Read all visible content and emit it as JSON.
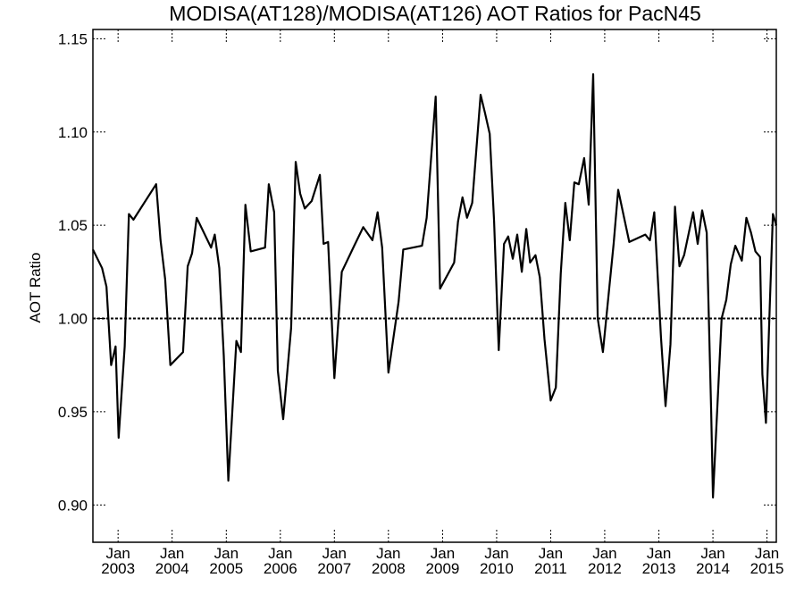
{
  "chart_data": {
    "type": "line",
    "title": "MODISA(AT128)/MODISA(AT126)  AOT Ratios for PacN45",
    "ylabel": "AOT Ratio",
    "xlabel": "",
    "ylim": [
      0.88,
      1.155
    ],
    "xlim": [
      "2002-07-15",
      "2015-03-05"
    ],
    "yticks": [
      0.9,
      0.95,
      1.0,
      1.05,
      1.1,
      1.15
    ],
    "ytick_labels": [
      "0.90",
      "0.95",
      "1.00",
      "1.05",
      "1.10",
      "1.15"
    ],
    "xticks": [
      {
        "month": "Jan",
        "year": "2003",
        "date": "2003-01-01"
      },
      {
        "month": "Jan",
        "year": "2004",
        "date": "2004-01-01"
      },
      {
        "month": "Jan",
        "year": "2005",
        "date": "2005-01-01"
      },
      {
        "month": "Jan",
        "year": "2006",
        "date": "2006-01-01"
      },
      {
        "month": "Jan",
        "year": "2007",
        "date": "2007-01-01"
      },
      {
        "month": "Jan",
        "year": "2008",
        "date": "2008-01-01"
      },
      {
        "month": "Jan",
        "year": "2009",
        "date": "2009-01-01"
      },
      {
        "month": "Jan",
        "year": "2010",
        "date": "2010-01-01"
      },
      {
        "month": "Jan",
        "year": "2011",
        "date": "2011-01-01"
      },
      {
        "month": "Jan",
        "year": "2012",
        "date": "2012-01-01"
      },
      {
        "month": "Jan",
        "year": "2013",
        "date": "2013-01-01"
      },
      {
        "month": "Jan",
        "year": "2014",
        "date": "2014-01-01"
      },
      {
        "month": "Jan",
        "year": "2015",
        "date": "2015-01-01"
      }
    ],
    "reference_line": 1.0,
    "grid": false,
    "series": [
      {
        "points": [
          [
            "2002-07-15",
            1.037
          ],
          [
            "2002-09-15",
            1.027
          ],
          [
            "2002-10-15",
            1.017
          ],
          [
            "2002-11-15",
            0.975
          ],
          [
            "2002-12-15",
            0.985
          ],
          [
            "2003-01-05",
            0.936
          ],
          [
            "2003-02-15",
            0.985
          ],
          [
            "2003-03-15",
            1.056
          ],
          [
            "2003-04-15",
            1.053
          ],
          [
            "2003-09-15",
            1.072
          ],
          [
            "2003-10-15",
            1.042
          ],
          [
            "2003-11-15",
            1.021
          ],
          [
            "2003-12-20",
            0.975
          ],
          [
            "2004-03-15",
            0.982
          ],
          [
            "2004-04-15",
            1.028
          ],
          [
            "2004-05-15",
            1.035
          ],
          [
            "2004-06-15",
            1.054
          ],
          [
            "2004-09-20",
            1.038
          ],
          [
            "2004-10-15",
            1.045
          ],
          [
            "2004-11-15",
            1.027
          ],
          [
            "2004-12-15",
            0.98
          ],
          [
            "2005-01-15",
            0.913
          ],
          [
            "2005-03-10",
            0.988
          ],
          [
            "2005-04-10",
            0.982
          ],
          [
            "2005-05-10",
            1.061
          ],
          [
            "2005-06-15",
            1.036
          ],
          [
            "2005-09-20",
            1.038
          ],
          [
            "2005-10-15",
            1.072
          ],
          [
            "2005-11-20",
            1.057
          ],
          [
            "2005-12-15",
            0.972
          ],
          [
            "2006-01-20",
            0.946
          ],
          [
            "2006-03-15",
            0.995
          ],
          [
            "2006-04-15",
            1.084
          ],
          [
            "2006-05-15",
            1.067
          ],
          [
            "2006-06-15",
            1.059
          ],
          [
            "2006-08-01",
            1.063
          ],
          [
            "2006-09-25",
            1.077
          ],
          [
            "2006-10-20",
            1.04
          ],
          [
            "2006-11-20",
            1.041
          ],
          [
            "2007-01-01",
            0.968
          ],
          [
            "2007-02-20",
            1.025
          ],
          [
            "2007-05-15",
            1.039
          ],
          [
            "2007-07-15",
            1.049
          ],
          [
            "2007-09-15",
            1.042
          ],
          [
            "2007-10-20",
            1.057
          ],
          [
            "2007-11-20",
            1.038
          ],
          [
            "2008-01-01",
            0.971
          ],
          [
            "2008-03-10",
            1.009
          ],
          [
            "2008-04-10",
            1.037
          ],
          [
            "2008-08-15",
            1.039
          ],
          [
            "2008-09-15",
            1.054
          ],
          [
            "2008-11-15",
            1.119
          ],
          [
            "2008-12-15",
            1.016
          ],
          [
            "2009-03-20",
            1.03
          ],
          [
            "2009-04-15",
            1.052
          ],
          [
            "2009-05-15",
            1.065
          ],
          [
            "2009-06-15",
            1.054
          ],
          [
            "2009-07-20",
            1.062
          ],
          [
            "2009-09-15",
            1.12
          ],
          [
            "2009-10-15",
            1.11
          ],
          [
            "2009-11-15",
            1.099
          ],
          [
            "2009-12-15",
            1.052
          ],
          [
            "2010-01-15",
            0.983
          ],
          [
            "2010-02-20",
            1.04
          ],
          [
            "2010-03-20",
            1.044
          ],
          [
            "2010-04-20",
            1.032
          ],
          [
            "2010-05-20",
            1.045
          ],
          [
            "2010-06-20",
            1.025
          ],
          [
            "2010-07-20",
            1.048
          ],
          [
            "2010-08-15",
            1.03
          ],
          [
            "2010-09-20",
            1.034
          ],
          [
            "2010-10-20",
            1.022
          ],
          [
            "2010-11-20",
            0.989
          ],
          [
            "2011-01-01",
            0.956
          ],
          [
            "2011-02-05",
            0.963
          ],
          [
            "2011-03-10",
            1.024
          ],
          [
            "2011-04-10",
            1.062
          ],
          [
            "2011-05-10",
            1.042
          ],
          [
            "2011-06-10",
            1.073
          ],
          [
            "2011-07-10",
            1.072
          ],
          [
            "2011-08-15",
            1.086
          ],
          [
            "2011-09-15",
            1.061
          ],
          [
            "2011-10-15",
            1.131
          ],
          [
            "2011-11-15",
            1.0
          ],
          [
            "2011-12-20",
            0.982
          ],
          [
            "2012-03-01",
            1.04
          ],
          [
            "2012-04-01",
            1.069
          ],
          [
            "2012-06-15",
            1.041
          ],
          [
            "2012-10-01",
            1.045
          ],
          [
            "2012-11-01",
            1.042
          ],
          [
            "2012-12-01",
            1.057
          ],
          [
            "2013-01-15",
            0.99
          ],
          [
            "2013-02-15",
            0.953
          ],
          [
            "2013-03-20",
            0.986
          ],
          [
            "2013-04-20",
            1.06
          ],
          [
            "2013-05-20",
            1.028
          ],
          [
            "2013-06-20",
            1.034
          ],
          [
            "2013-08-20",
            1.057
          ],
          [
            "2013-09-20",
            1.04
          ],
          [
            "2013-10-20",
            1.058
          ],
          [
            "2013-11-20",
            1.046
          ],
          [
            "2013-12-20",
            0.95
          ],
          [
            "2014-01-01",
            0.904
          ],
          [
            "2014-03-01",
            1.0
          ],
          [
            "2014-04-01",
            1.01
          ],
          [
            "2014-05-01",
            1.029
          ],
          [
            "2014-06-01",
            1.039
          ],
          [
            "2014-07-15",
            1.031
          ],
          [
            "2014-08-15",
            1.054
          ],
          [
            "2014-09-15",
            1.046
          ],
          [
            "2014-10-15",
            1.036
          ],
          [
            "2014-11-15",
            1.033
          ],
          [
            "2014-12-01",
            0.97
          ],
          [
            "2014-12-25",
            0.944
          ],
          [
            "2015-01-20",
            1.007
          ],
          [
            "2015-02-10",
            1.056
          ],
          [
            "2015-03-05",
            1.05
          ]
        ]
      }
    ]
  }
}
